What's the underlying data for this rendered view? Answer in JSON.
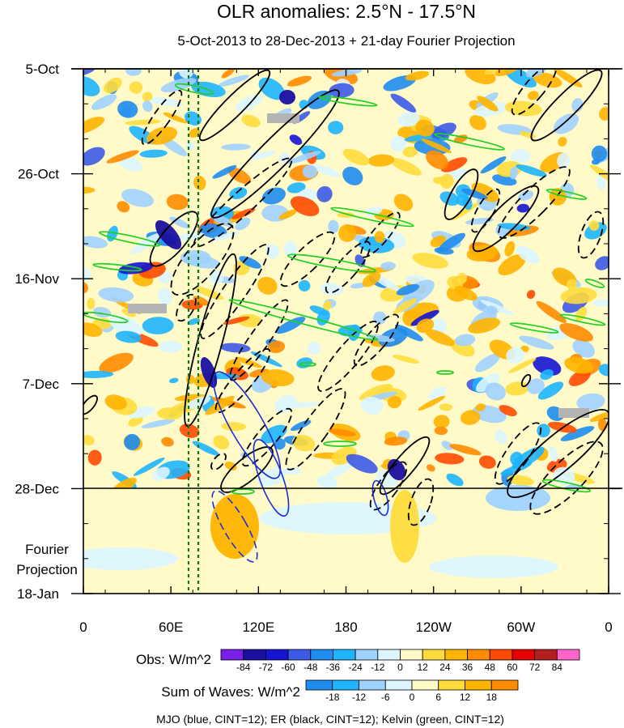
{
  "chart_data": {
    "type": "heatmap",
    "title": "OLR anomalies: 2.5°N - 17.5°N",
    "subtitle": "5-Oct-2013 to 28-Dec-2013 + 21-day Fourier Projection",
    "x_tick_labels": [
      "0",
      "60E",
      "120E",
      "180",
      "120W",
      "60W",
      "0"
    ],
    "x_range_deg_east": [
      0,
      360
    ],
    "y_tick_labels": [
      "5-Oct",
      "26-Oct",
      "16-Nov",
      "7-Dec",
      "28-Dec",
      "18-Jan"
    ],
    "y_range": [
      "5-Oct-2013",
      "18-Jan-2014"
    ],
    "projection_boundary": "28-Dec",
    "projection_label": [
      "Fourier",
      "Projection"
    ],
    "obs_colorbar": {
      "label": "Obs: W/m^2",
      "levels": [
        "-84",
        "-72",
        "-60",
        "-48",
        "-36",
        "-24",
        "-12",
        "0",
        "12",
        "24",
        "36",
        "48",
        "60",
        "72",
        "84"
      ],
      "colors": [
        "#7a1fe8",
        "#1a0fa0",
        "#1414d2",
        "#3c5ae6",
        "#1f8cf0",
        "#1eb4ff",
        "#a0d2ff",
        "#dcf5ff",
        "#fffac8",
        "#ffdc3c",
        "#ffb400",
        "#ff8c00",
        "#ff4b00",
        "#e60000",
        "#b41e1e",
        "#ff64c8"
      ]
    },
    "waves_colorbar": {
      "label": "Sum of Waves: W/m^2",
      "levels": [
        "-18",
        "-12",
        "-6",
        "0",
        "6",
        "12",
        "18"
      ],
      "colors": [
        "#1f8cf0",
        "#1eb4ff",
        "#a0d2ff",
        "#dcf5ff",
        "#fffac8",
        "#ffdc3c",
        "#ffb400",
        "#ff8c00"
      ]
    },
    "contour_legend": "MJO (blue, CINT=12); ER (black, CINT=12); Kelvin (green, CINT=12)",
    "series_colors": {
      "MJO": "#1c2fd4",
      "ER": "#000000",
      "Kelvin": "#22d022"
    },
    "reference_lines_deg_east": [
      73,
      80
    ]
  }
}
